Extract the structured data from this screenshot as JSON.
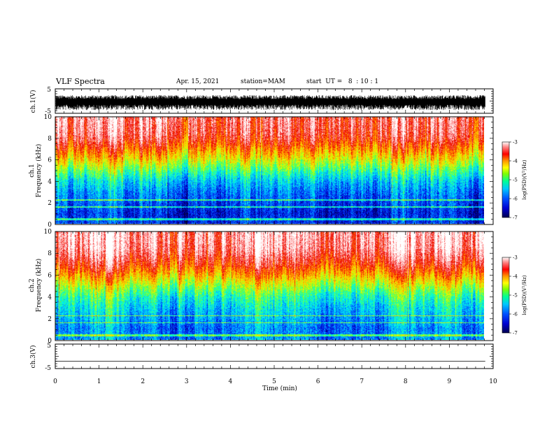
{
  "header": {
    "title": "VLF Spectra",
    "date": "Apr. 15, 2021",
    "station": "station=MAM",
    "start_ut": "start  UT =   8  : 10 : 1"
  },
  "colors": {
    "colormap": [
      "#00004a",
      "#0000c8",
      "#0046ff",
      "#00b4ff",
      "#00ffe6",
      "#50ff50",
      "#dcff00",
      "#ffc800",
      "#ff6400",
      "#eb0000",
      "#ff9696",
      "#ffffff"
    ]
  },
  "chart_data": [
    {
      "type": "line",
      "panel": "ch.1 waveform",
      "ylabel": "ch.1(V)",
      "ylim": [
        -5,
        5
      ],
      "yticks": [
        "5",
        "-5"
      ],
      "xlim": [
        0,
        10
      ],
      "note_values": "waveform dense noise between about -3.5 and 2 V"
    },
    {
      "type": "heatmap",
      "panel": "ch.1 spectrogram",
      "ylabel_top": "ch.1",
      "ylabel": "Frequency  (kHz)",
      "ylim": [
        0,
        10
      ],
      "yticks": [
        "0",
        "2",
        "4",
        "6",
        "8",
        "10"
      ],
      "xlim": [
        0,
        9.82
      ],
      "profile": {
        "freq_khz": [
          0,
          1,
          2,
          3,
          4,
          4.8,
          5.5,
          6.2,
          7,
          7.8,
          8.5,
          10
        ],
        "log_psd": [
          -6.4,
          -6.5,
          -6.3,
          -6.1,
          -5.8,
          -5.4,
          -5.0,
          -4.6,
          -4.2,
          -3.8,
          -3.6,
          -3.5
        ]
      },
      "colorbar": {
        "label": "log(PSD)(V²/Hz)",
        "range": [
          -7,
          -3
        ],
        "ticks": [
          "-3",
          "-4",
          "-5",
          "-6",
          "-7"
        ]
      }
    },
    {
      "type": "heatmap",
      "panel": "ch.2 spectrogram",
      "ylabel_top": "ch.2",
      "ylabel": "Frequency  (kHz)",
      "ylim": [
        0,
        10
      ],
      "yticks": [
        "0",
        "2",
        "4",
        "6",
        "8",
        "10"
      ],
      "xlim": [
        0,
        9.82
      ],
      "profile": {
        "freq_khz": [
          0,
          1,
          2,
          3,
          4,
          4.8,
          5.5,
          6.2,
          7,
          7.8,
          8.5,
          10
        ],
        "log_psd": [
          -6.0,
          -6.1,
          -5.9,
          -5.7,
          -5.4,
          -5.0,
          -4.6,
          -4.2,
          -3.8,
          -3.5,
          -3.3,
          -3.2
        ]
      },
      "colorbar": {
        "label": "log(PSD)(V²/Hz)",
        "range": [
          -7,
          -3
        ],
        "ticks": [
          "-3",
          "-4",
          "-5",
          "-6",
          "-7"
        ]
      }
    },
    {
      "type": "line",
      "panel": "ch.3 waveform",
      "ylabel": "ch.3(V)",
      "ylim": [
        -5,
        5
      ],
      "yticks": [
        "5",
        "-5"
      ],
      "xlim": [
        0,
        10
      ],
      "x": [
        0,
        9.82
      ],
      "y": [
        -2,
        -2
      ]
    }
  ],
  "xaxis": {
    "label": "Time  (min)",
    "ticks": [
      "0",
      "1",
      "2",
      "3",
      "4",
      "5",
      "6",
      "7",
      "8",
      "9",
      "10"
    ]
  }
}
